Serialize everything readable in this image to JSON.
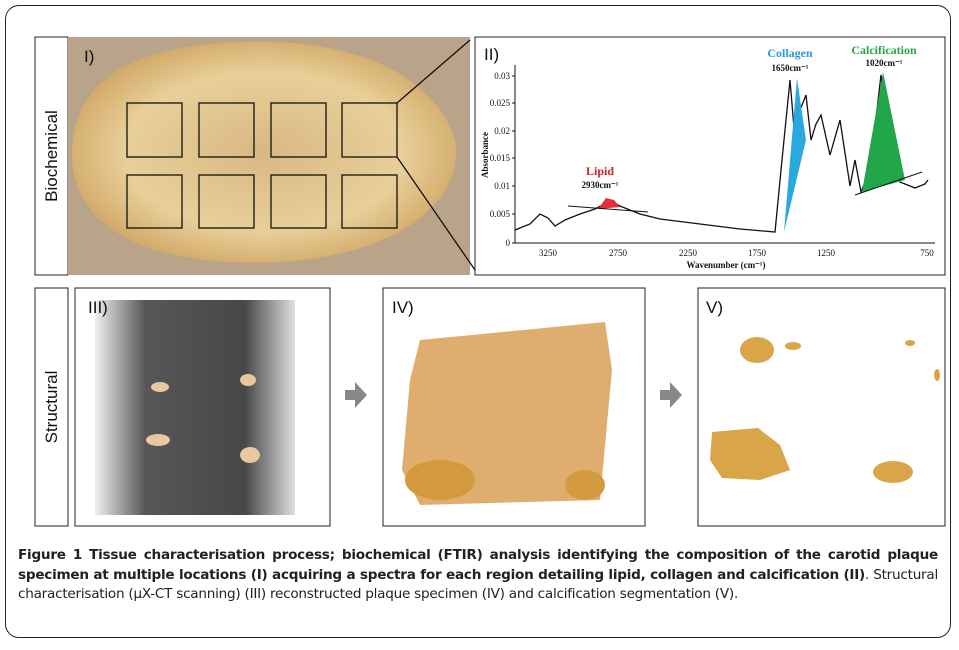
{
  "rows": [
    {
      "label": "Biochemical"
    },
    {
      "label": "Structural"
    }
  ],
  "panels": {
    "I": "I)",
    "II": "II)",
    "III": "III)",
    "IV": "IV)",
    "V": "V)"
  },
  "spectrum": {
    "y_axis_label": "Absorbance",
    "x_axis_label": "Wavenumber (cm⁻¹)",
    "yticks": [
      "0",
      "0.005",
      "0.01",
      "0.015",
      "0.02",
      "0.025",
      "0.03"
    ],
    "xticks": [
      "3250",
      "2750",
      "2250",
      "1750",
      "1250",
      "750"
    ],
    "peaks": [
      {
        "name": "Lipid",
        "wavenumber": "2930cm⁻¹"
      },
      {
        "name": "Collagen",
        "wavenumber": "1650cm⁻¹"
      },
      {
        "name": "Calcification",
        "wavenumber": "1020cm⁻¹"
      }
    ]
  },
  "caption": {
    "label": "Figure 1",
    "bold": " Tissue characterisation process; biochemical (FTIR) analysis identifying the composition of the carotid plaque specimen at multiple locations (I) acquiring a spectra for each region detailing lipid, collagen and calcification (II)",
    "text": ". Structural characterisation (μX-CT scanning) (III) reconstructed plaque specimen (IV) and calcification segmentation (V)."
  }
}
